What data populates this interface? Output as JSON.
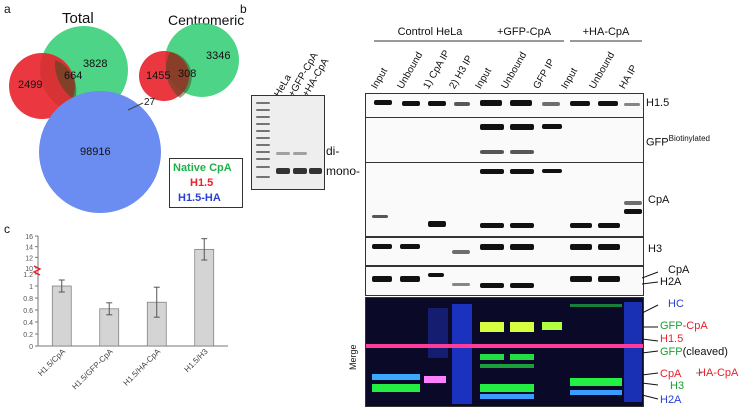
{
  "panel_a": {
    "letter": "a",
    "total_title": "Total",
    "centromeric_title": "Centromeric",
    "total": {
      "h15_only": "2499",
      "overlap": "664",
      "cpa_only": "3828",
      "outlier": "27",
      "h15ha": "98916"
    },
    "centromeric": {
      "h15_only": "1455",
      "overlap": "308",
      "cpa_only": "3346"
    },
    "legend": {
      "native": "Native CpA",
      "h15": "H1.5",
      "h15ha": "H1.5-HA"
    },
    "colors": {
      "green": "#2ecc71",
      "red": "#e8212b",
      "blue": "#6b8cf0"
    }
  },
  "panel_b": {
    "letter": "b",
    "gel_lanes": [
      "HeLa",
      "+GFP-CpA",
      "+HA-CpA"
    ],
    "gel_labels": {
      "di": "di-",
      "mono": "mono-"
    },
    "groups": [
      "Control HeLa",
      "+GFP-CpA",
      "+HA-CpA"
    ],
    "lanes": [
      "Input",
      "Unbound",
      "1) CpA IP",
      "2) H3 IP",
      "Input",
      "Unbound",
      "GFP IP",
      "Input",
      "Unbound",
      "HA IP"
    ],
    "blot_labels": {
      "h15": "H1.5",
      "gfp": "GFP",
      "gfp_sup": "Biotinylated",
      "cpa": "CpA",
      "h3": "H3",
      "cpa2": "CpA",
      "h2a": "H2A",
      "merge": "Merge"
    },
    "merge_labels": {
      "hc": "HC",
      "gfp_cpa": "GFP-CpA",
      "h15": "H1.5",
      "gfp_cleaved": "GFP",
      "cleaved": "(cleaved)",
      "cpa": "CpA",
      "h3": "H3",
      "h2a": "H2A",
      "ha_cpa": "HA-CpA"
    }
  },
  "panel_c": {
    "letter": "c",
    "chart_data": {
      "type": "bar",
      "categories": [
        "H1.5/CpA",
        "H1.5/GFP-CpA",
        "H1.5/HA-CpA",
        "H1.5/H3"
      ],
      "values": [
        1.0,
        0.62,
        0.73,
        13.5
      ],
      "errors": [
        0.1,
        0.1,
        0.25,
        2.0
      ],
      "yticks_lower": [
        "0",
        "0.2",
        "0.4",
        "0.6",
        "0.8",
        "1",
        "1.2"
      ],
      "yticks_upper": [
        "10",
        "12",
        "14",
        "16"
      ],
      "axis_break": true
    }
  }
}
